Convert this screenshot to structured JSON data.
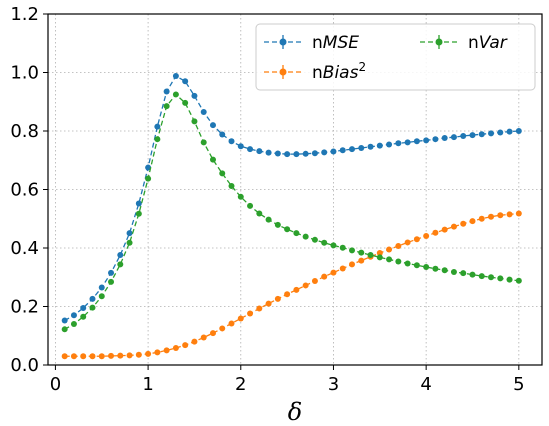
{
  "chart_data": {
    "type": "line",
    "xlabel": "δ",
    "ylabel": "",
    "xlim": [
      -0.08,
      5.25
    ],
    "ylim": [
      0.0,
      1.2
    ],
    "xticks": [
      0,
      1,
      2,
      3,
      4,
      5
    ],
    "yticks": [
      0.0,
      0.2,
      0.4,
      0.6,
      0.8,
      1.0,
      1.2
    ],
    "xtick_labels": [
      "0",
      "1",
      "2",
      "3",
      "4",
      "5"
    ],
    "ytick_labels": [
      "0.0",
      "0.2",
      "0.4",
      "0.6",
      "0.8",
      "1.0",
      "1.2"
    ],
    "grid": true,
    "grid_style": "dotted",
    "legend_position": "top-right",
    "legend_columns": 2,
    "x": [
      0.1,
      0.2,
      0.3,
      0.4,
      0.5,
      0.6,
      0.7,
      0.8,
      0.9,
      1.0,
      1.1,
      1.2,
      1.3,
      1.4,
      1.5,
      1.6,
      1.7,
      1.8,
      1.9,
      2.0,
      2.1,
      2.2,
      2.3,
      2.4,
      2.5,
      2.6,
      2.7,
      2.8,
      2.9,
      3.0,
      3.1,
      3.2,
      3.3,
      3.4,
      3.5,
      3.6,
      3.7,
      3.8,
      3.9,
      4.0,
      4.1,
      4.2,
      4.3,
      4.4,
      4.5,
      4.6,
      4.7,
      4.8,
      4.9,
      5.0
    ],
    "series": [
      {
        "name": "nMSE",
        "legend_parts": [
          {
            "text": "n",
            "italic": false
          },
          {
            "text": "MSE",
            "italic": true
          }
        ],
        "color": "#1f77b4",
        "values": [
          0.152,
          0.17,
          0.195,
          0.226,
          0.265,
          0.315,
          0.376,
          0.451,
          0.552,
          0.675,
          0.815,
          0.935,
          0.988,
          0.97,
          0.92,
          0.865,
          0.82,
          0.788,
          0.765,
          0.748,
          0.738,
          0.731,
          0.726,
          0.723,
          0.721,
          0.721,
          0.722,
          0.724,
          0.727,
          0.73,
          0.734,
          0.738,
          0.742,
          0.746,
          0.75,
          0.754,
          0.758,
          0.761,
          0.765,
          0.768,
          0.772,
          0.776,
          0.779,
          0.783,
          0.786,
          0.789,
          0.792,
          0.795,
          0.798,
          0.8
        ]
      },
      {
        "name": "nBias2",
        "legend_parts": [
          {
            "text": "n",
            "italic": false
          },
          {
            "text": "Bias",
            "italic": true
          },
          {
            "text": "2",
            "italic": false,
            "sup": true
          }
        ],
        "color": "#ff7f0e",
        "values": [
          0.03,
          0.03,
          0.03,
          0.03,
          0.03,
          0.031,
          0.032,
          0.033,
          0.035,
          0.038,
          0.043,
          0.05,
          0.058,
          0.068,
          0.08,
          0.094,
          0.109,
          0.125,
          0.142,
          0.159,
          0.176,
          0.193,
          0.21,
          0.226,
          0.242,
          0.257,
          0.272,
          0.287,
          0.302,
          0.316,
          0.33,
          0.344,
          0.357,
          0.37,
          0.383,
          0.395,
          0.407,
          0.419,
          0.43,
          0.441,
          0.452,
          0.463,
          0.473,
          0.483,
          0.492,
          0.5,
          0.507,
          0.512,
          0.515,
          0.518
        ]
      },
      {
        "name": "nVar",
        "legend_parts": [
          {
            "text": "n",
            "italic": false
          },
          {
            "text": "Var",
            "italic": true
          }
        ],
        "color": "#2ca02c",
        "values": [
          0.122,
          0.14,
          0.165,
          0.196,
          0.235,
          0.284,
          0.344,
          0.418,
          0.517,
          0.637,
          0.772,
          0.885,
          0.925,
          0.896,
          0.833,
          0.761,
          0.702,
          0.655,
          0.612,
          0.575,
          0.544,
          0.518,
          0.497,
          0.479,
          0.464,
          0.451,
          0.439,
          0.428,
          0.418,
          0.409,
          0.401,
          0.392,
          0.384,
          0.376,
          0.368,
          0.361,
          0.354,
          0.347,
          0.341,
          0.335,
          0.329,
          0.324,
          0.318,
          0.314,
          0.309,
          0.304,
          0.3,
          0.296,
          0.292,
          0.288
        ]
      }
    ]
  }
}
